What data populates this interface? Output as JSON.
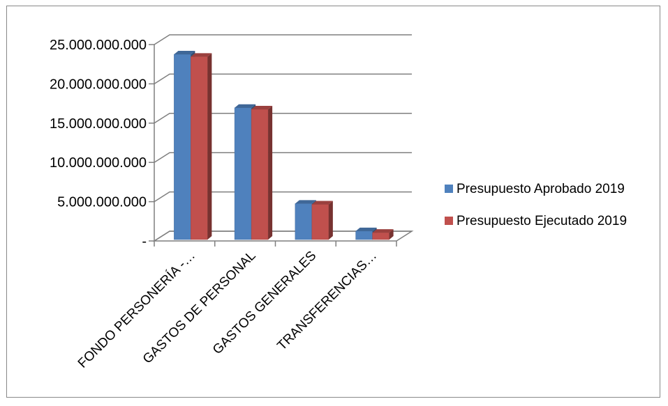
{
  "chart_data": {
    "type": "bar",
    "title": "",
    "xlabel": "",
    "ylabel": "",
    "categories": [
      "FONDO PERSONERÍA -…",
      "GASTOS DE PERSONAL",
      "GASTOS GENERALES",
      "TRANSFERENCIAS…"
    ],
    "series": [
      {
        "name": "Presupuesto Aprobado 2019",
        "values": [
          24200000000,
          17400000000,
          5200000000,
          1700000000
        ],
        "color": "#4F81BD"
      },
      {
        "name": "Presupuesto Ejecutado 2019",
        "values": [
          23900000000,
          17200000000,
          5100000000,
          1500000000
        ],
        "color": "#C0504D"
      }
    ],
    "ylim": [
      0,
      25000000000
    ],
    "yticks": [
      0,
      5000000000,
      10000000000,
      15000000000,
      20000000000,
      25000000000
    ],
    "ytick_labels": [
      "-",
      "5.000.000.000",
      "10.000.000.000",
      "15.000.000.000",
      "20.000.000.000",
      "25.000.000.000"
    ],
    "grid": true,
    "legend_position": "right",
    "style": "3d-clustered-column"
  }
}
